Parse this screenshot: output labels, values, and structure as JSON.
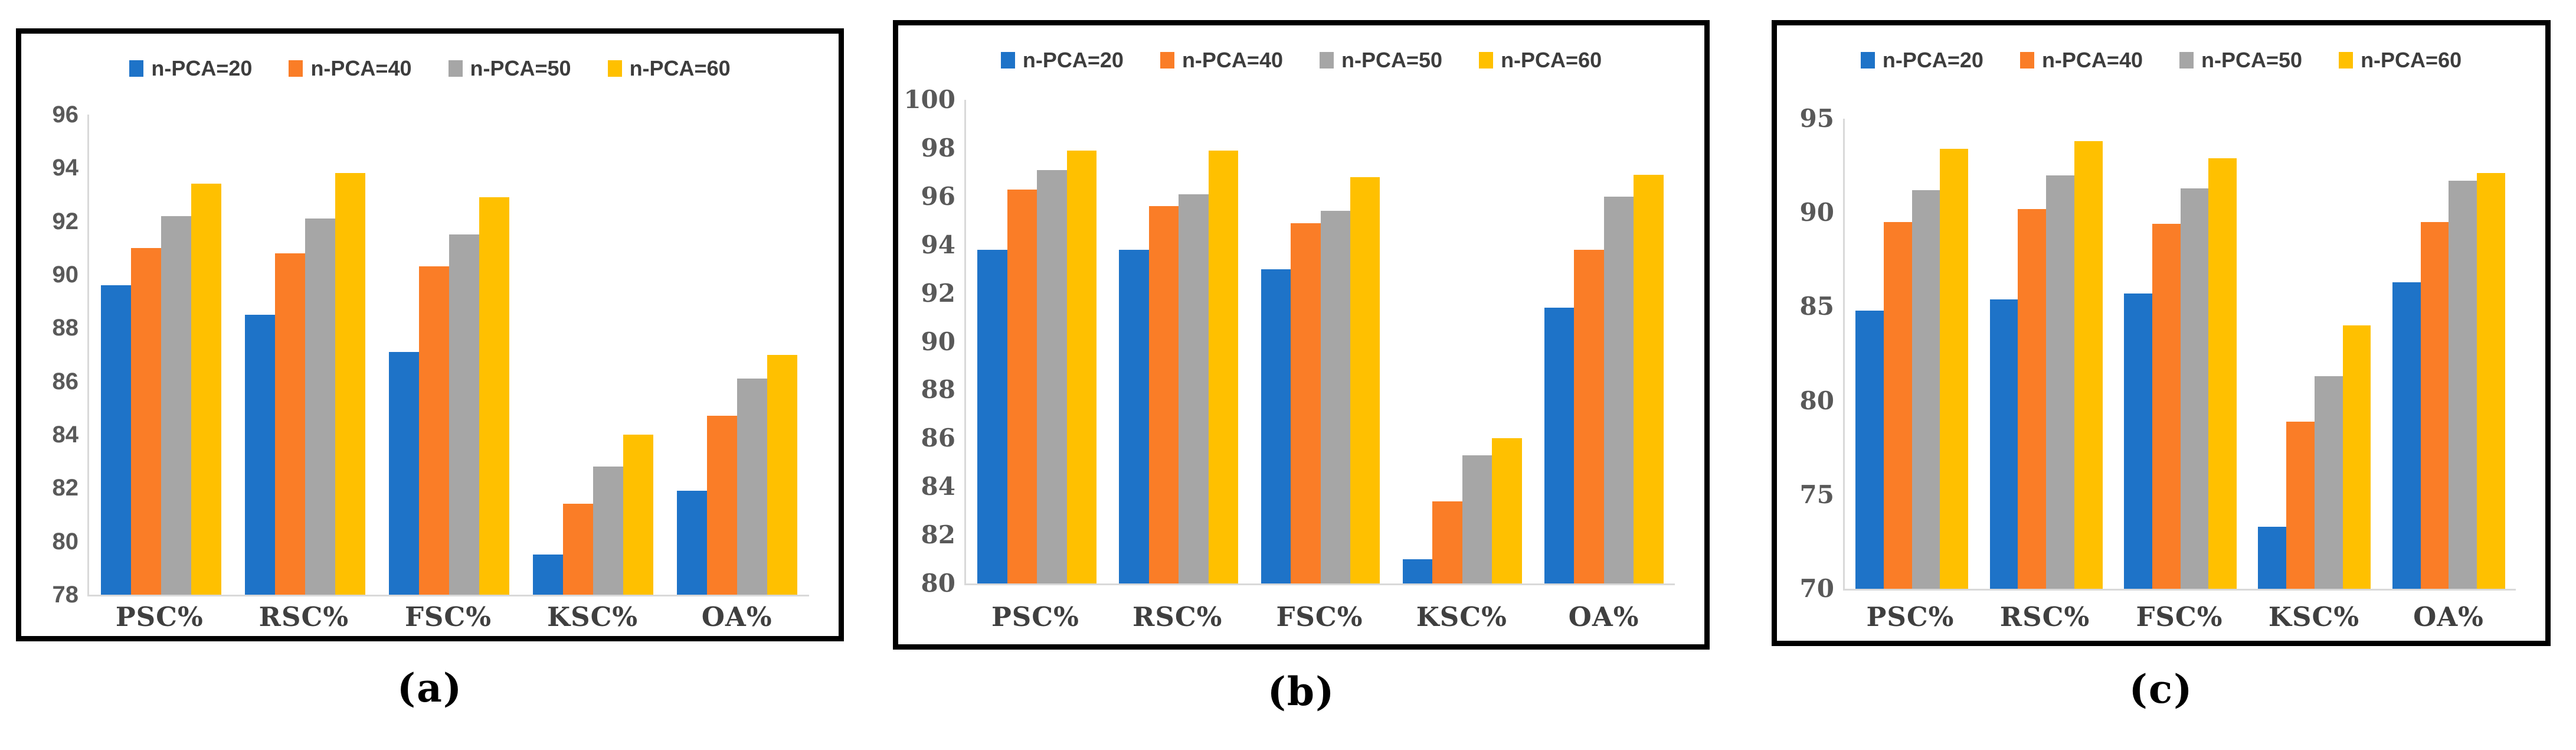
{
  "chart_data": [
    {
      "id": "a",
      "caption": "(a)",
      "type": "bar",
      "title": "",
      "xlabel": "",
      "ylabel": "",
      "categories": [
        "PSC%",
        "RSC%",
        "FSC%",
        "KSC%",
        "OA%"
      ],
      "series": [
        {
          "name": "n-PCA=20",
          "color": "#1E73C8",
          "values": [
            89.6,
            88.5,
            87.1,
            79.5,
            81.9
          ]
        },
        {
          "name": "n-PCA=40",
          "color": "#FA7D27",
          "values": [
            91.0,
            90.8,
            90.3,
            81.4,
            84.7
          ]
        },
        {
          "name": "n-PCA=50",
          "color": "#A6A6A6",
          "values": [
            92.2,
            92.1,
            91.5,
            82.8,
            86.1
          ]
        },
        {
          "name": "n-PCA=60",
          "color": "#FFC000",
          "values": [
            93.4,
            93.8,
            92.9,
            84.0,
            87.0
          ]
        }
      ],
      "ylim": [
        78,
        96
      ],
      "ytick_step": 2,
      "grid": false,
      "legend_position": "top"
    },
    {
      "id": "b",
      "caption": "(b)",
      "type": "bar",
      "title": "",
      "xlabel": "",
      "ylabel": "",
      "categories": [
        "PSC%",
        "RSC%",
        "FSC%",
        "KSC%",
        "OA%"
      ],
      "series": [
        {
          "name": "n-PCA=20",
          "color": "#1E73C8",
          "values": [
            93.8,
            93.8,
            93.0,
            81.0,
            91.4
          ]
        },
        {
          "name": "n-PCA=40",
          "color": "#FA7D27",
          "values": [
            96.3,
            95.6,
            94.9,
            83.4,
            93.8
          ]
        },
        {
          "name": "n-PCA=50",
          "color": "#A6A6A6",
          "values": [
            97.1,
            96.1,
            95.4,
            85.3,
            96.0
          ]
        },
        {
          "name": "n-PCA=60",
          "color": "#FFC000",
          "values": [
            97.9,
            97.9,
            96.8,
            86.0,
            96.9
          ]
        }
      ],
      "ylim": [
        80,
        100
      ],
      "ytick_step": 2,
      "grid": false,
      "legend_position": "top"
    },
    {
      "id": "c",
      "caption": "(c)",
      "type": "bar",
      "title": "",
      "xlabel": "",
      "ylabel": "",
      "categories": [
        "PSC%",
        "RSC%",
        "FSC%",
        "KSC%",
        "OA%"
      ],
      "series": [
        {
          "name": "n-PCA=20",
          "color": "#1E73C8",
          "values": [
            84.8,
            85.4,
            85.7,
            73.3,
            86.3
          ]
        },
        {
          "name": "n-PCA=40",
          "color": "#FA7D27",
          "values": [
            89.5,
            90.2,
            89.4,
            78.9,
            89.5
          ]
        },
        {
          "name": "n-PCA=50",
          "color": "#A6A6A6",
          "values": [
            91.2,
            92.0,
            91.3,
            81.3,
            91.7
          ]
        },
        {
          "name": "n-PCA=60",
          "color": "#FFC000",
          "values": [
            93.4,
            93.8,
            92.9,
            84.0,
            92.1
          ]
        }
      ],
      "ylim": [
        70,
        95
      ],
      "ytick_step": 5,
      "grid": false,
      "legend_position": "top"
    }
  ]
}
